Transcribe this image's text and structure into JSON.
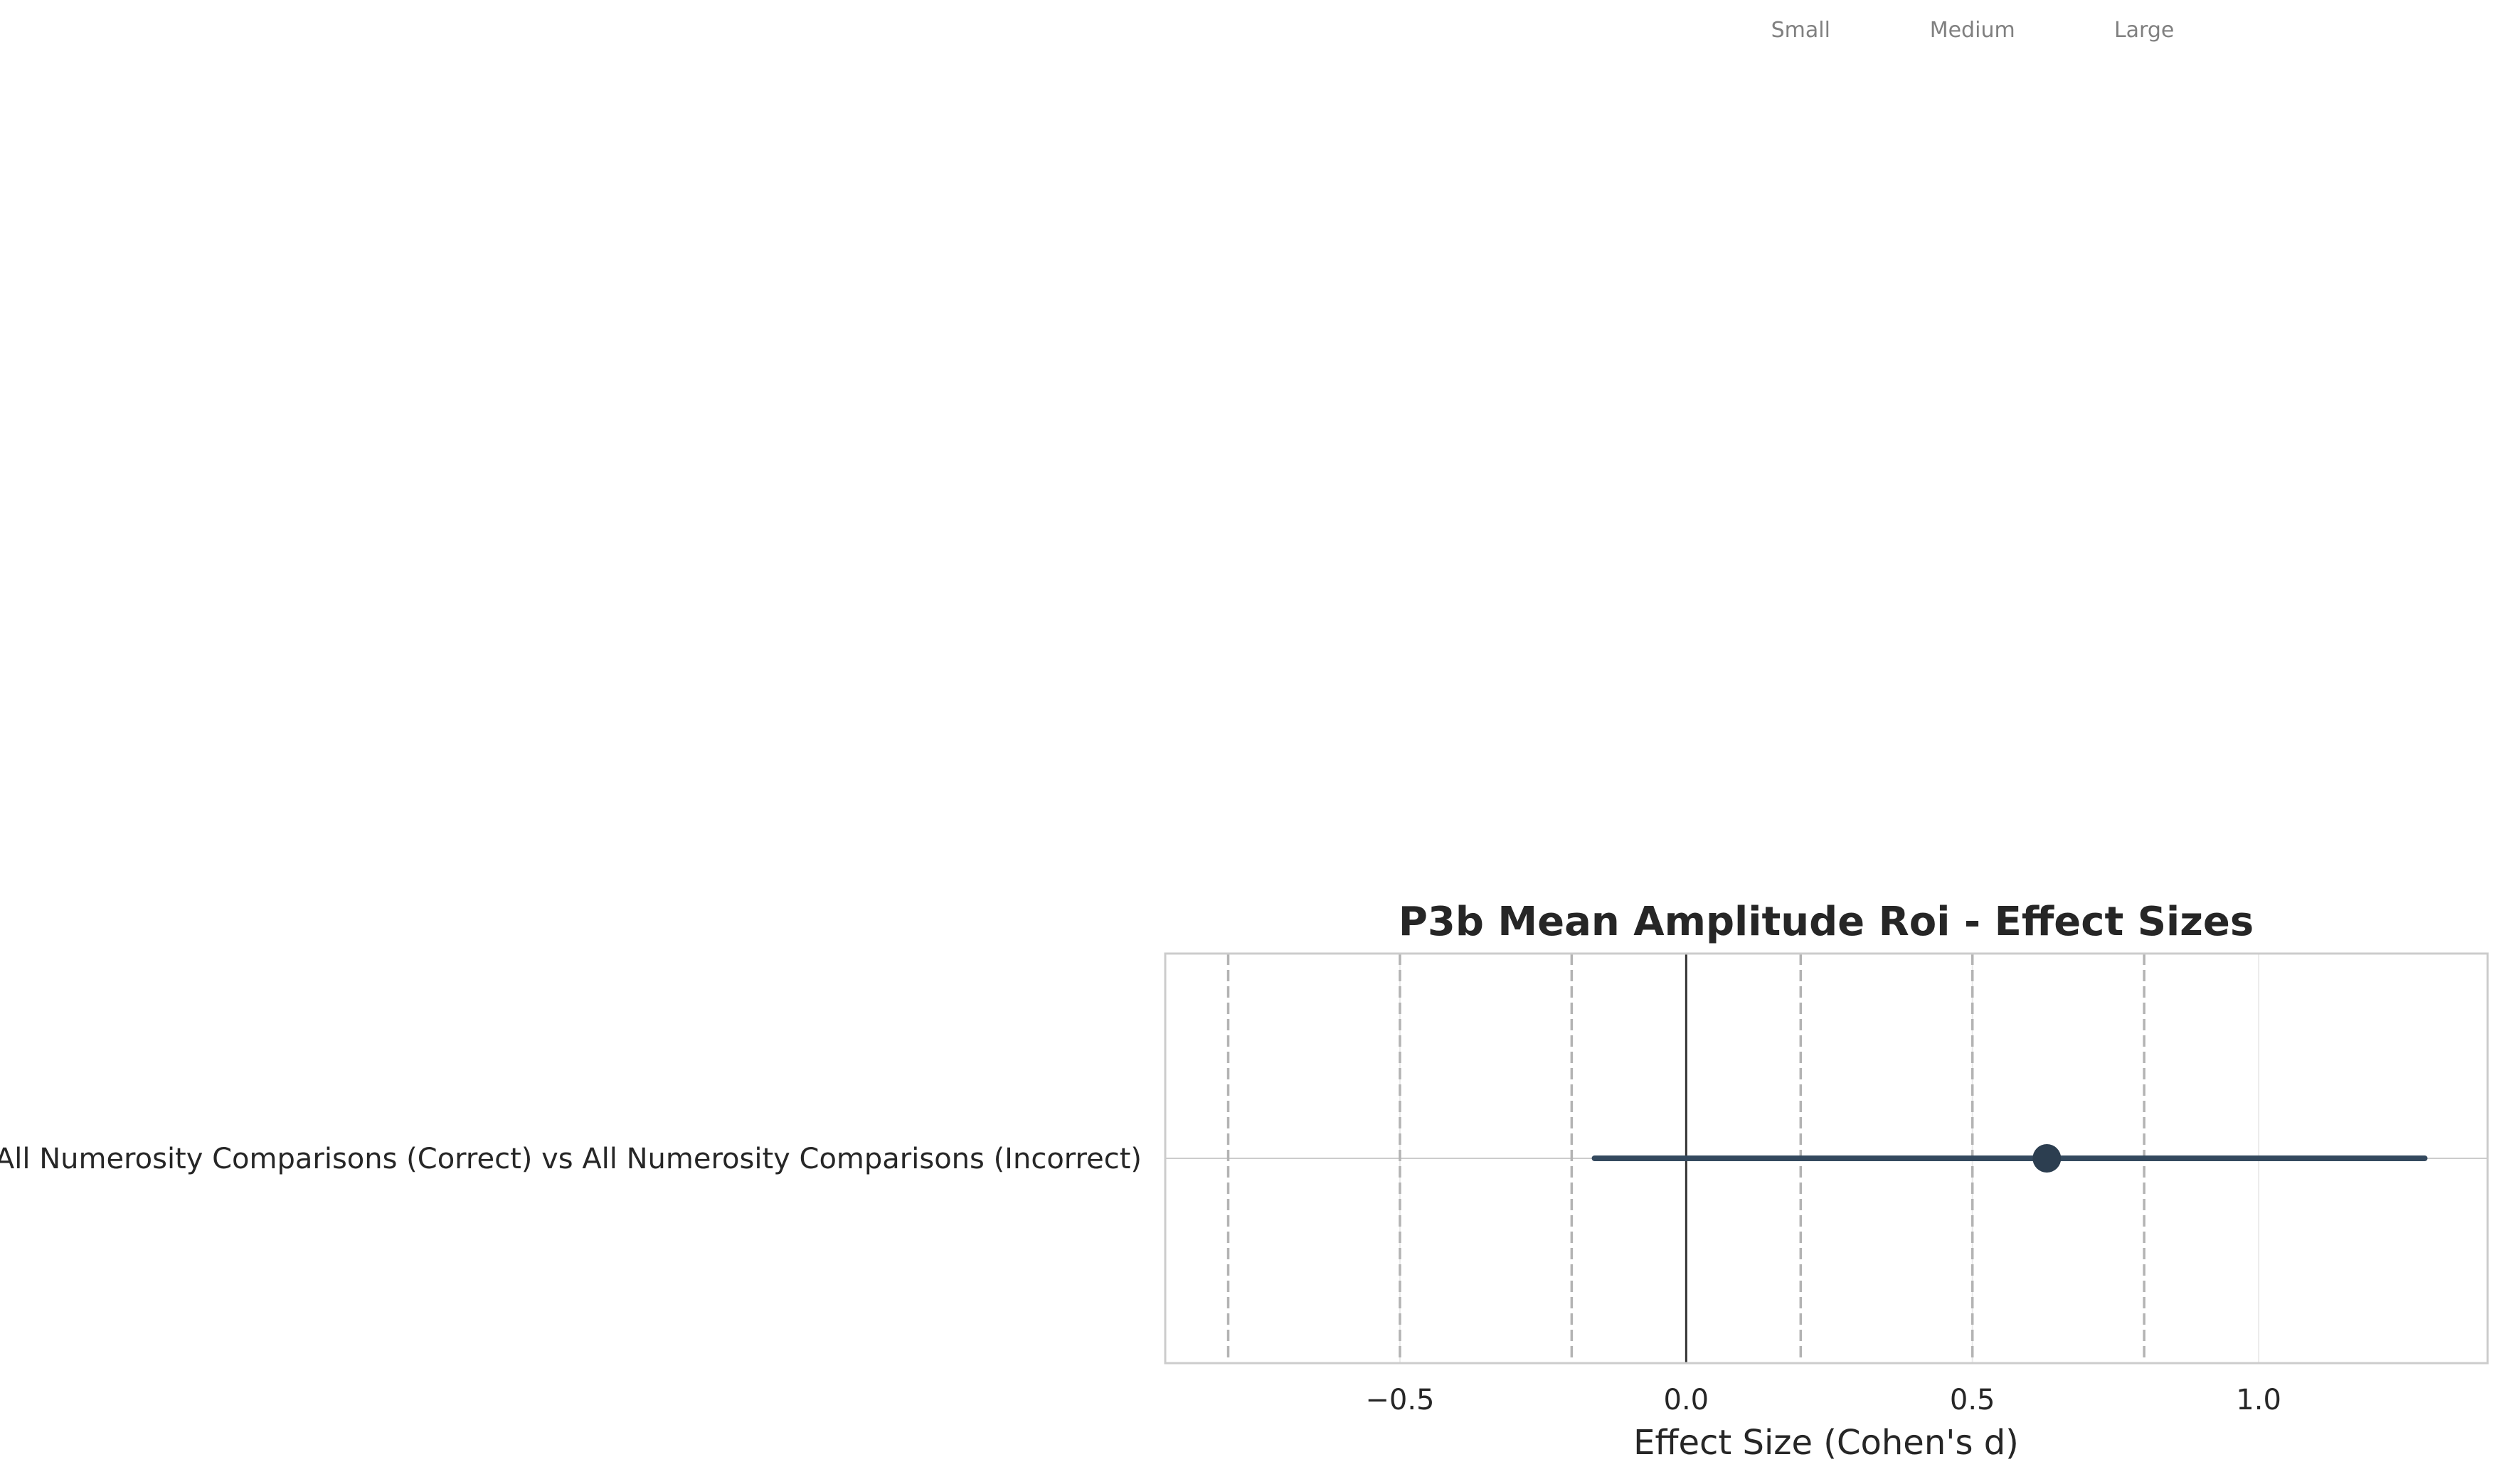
{
  "chart_data": {
    "type": "forest",
    "title": "P3b Mean Amplitude Roi - Effect Sizes",
    "xlabel": "Effect Size (Cohen's d)",
    "ylabel": "",
    "xlim": [
      -0.91,
      1.4
    ],
    "xticks": [
      -0.5,
      0.0,
      0.5,
      1.0
    ],
    "xtick_labels": [
      "−0.5",
      "0.0",
      "0.5",
      "1.0"
    ],
    "grid": true,
    "categories": [
      "All Numerosity Comparisons (Correct) vs All Numerosity Comparisons (Incorrect)"
    ],
    "estimates": [
      {
        "label": "All Numerosity Comparisons (Correct) vs All Numerosity Comparisons (Incorrect)",
        "d": 0.63,
        "ci_low": -0.16,
        "ci_high": 1.29
      }
    ],
    "zero_line": 0.0,
    "reference_lines": [
      {
        "value": -0.8
      },
      {
        "value": -0.5
      },
      {
        "value": -0.2
      },
      {
        "value": 0.2,
        "label": "Small"
      },
      {
        "value": 0.5,
        "label": "Medium"
      },
      {
        "value": 0.8,
        "label": "Large"
      }
    ],
    "colors": {
      "point": "#2c3e50",
      "ci_line": "#34495e",
      "zero_line": "#333333",
      "ref_line": "#b3b3b3",
      "grid": "#ebebeb",
      "frame": "#cccccc"
    }
  }
}
